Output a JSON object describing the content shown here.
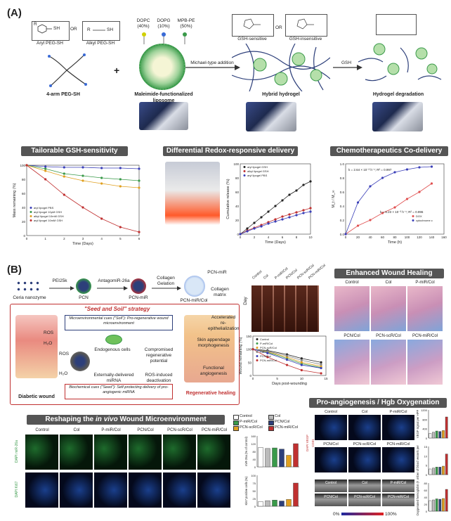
{
  "panelA": {
    "letter": "(A)",
    "aryl_label": "Aryl PEG-SH",
    "or1": "OR",
    "alkyl_label": "Alkyl PEG-SH",
    "sh1": "SH",
    "sh2": "SH",
    "r1": "R",
    "r2": "R",
    "peg_label": "4-arm PEG-SH",
    "plus": "+",
    "lip_comp": [
      "DOPC (40%)",
      "DOPG (10%)",
      "MPB-PE (50%)"
    ],
    "liposome_label": "Maleimide-functionalized liposome",
    "michael_label": "Michael-type addition",
    "gsh_sensitive": "GSH-sensitive",
    "or2": "OR",
    "gsh_insensitive": "GSH-insensitive",
    "hybrid_label": "Hybrid hydrogel",
    "gsh_arrow": "GSH",
    "degradation_label": "Hydrogel degradation",
    "banners": [
      "Tailorable GSH-sensitivity",
      "Differential Redox-responsive delivery",
      "Chemotherapeutics Co-delivery"
    ]
  },
  "chart_data": [
    {
      "type": "line",
      "xlabel": "Time (Days)",
      "ylabel": "Mass remaining (%)",
      "ylim": [
        0,
        100
      ],
      "x": [
        0,
        1,
        2,
        3,
        4,
        5,
        6
      ],
      "series": [
        {
          "name": "aryl lipogel PBS",
          "values": [
            100,
            98,
            97,
            97,
            96,
            96,
            95
          ],
          "color": "#3a3fb8"
        },
        {
          "name": "aryl lipogel 10μM GSH",
          "values": [
            100,
            95,
            88,
            85,
            82,
            80,
            78
          ],
          "color": "#3a9a4a"
        },
        {
          "name": "alkyl lipogel 10mM GSH",
          "values": [
            100,
            92,
            84,
            78,
            74,
            70,
            68
          ],
          "color": "#e0a020"
        },
        {
          "name": "aryl lipogel 10mM GSH",
          "values": [
            100,
            80,
            58,
            40,
            24,
            12,
            5
          ],
          "color": "#c03030"
        }
      ],
      "xticks": [
        "0",
        "1",
        "2",
        "3",
        "4",
        "5",
        "6"
      ],
      "yticks": [
        "0",
        "20",
        "40",
        "60",
        "80",
        "100"
      ]
    },
    {
      "type": "line",
      "xlabel": "Time (Days)",
      "ylabel": "Cumulative release (%)",
      "ylim": [
        0,
        100
      ],
      "x": [
        0,
        1,
        2,
        3,
        4,
        5,
        6,
        7,
        8,
        9,
        10
      ],
      "series": [
        {
          "name": "aryl lipogel GSH",
          "values": [
            0,
            8,
            16,
            24,
            32,
            40,
            48,
            56,
            62,
            70,
            75
          ],
          "color": "#222222"
        },
        {
          "name": "alkyl lipogel GSH",
          "values": [
            0,
            5,
            9,
            13,
            17,
            21,
            25,
            28,
            31,
            34,
            37
          ],
          "color": "#c03030"
        },
        {
          "name": "aryl lipogel PBS",
          "values": [
            0,
            4,
            8,
            11,
            15,
            18,
            21,
            24,
            27,
            30,
            32
          ],
          "color": "#3a3fb8"
        }
      ],
      "xticks": [
        "0",
        "2",
        "4",
        "6",
        "8",
        "10"
      ],
      "yticks": [
        "0",
        "20",
        "40",
        "60",
        "80",
        "100"
      ]
    },
    {
      "type": "scatter",
      "xlabel": "Time (h)",
      "ylabel": "M_t / M_∞",
      "ylim": [
        0,
        1.0
      ],
      "x": [
        0,
        20,
        40,
        60,
        80,
        100,
        120,
        140
      ],
      "series": [
        {
          "name": "DOX",
          "values": [
            0,
            0.12,
            0.2,
            0.3,
            0.38,
            0.5,
            0.6,
            0.72
          ],
          "color": "#e05050"
        },
        {
          "name": "cytochrome c",
          "values": [
            0,
            0.45,
            0.68,
            0.8,
            0.88,
            0.92,
            0.95,
            0.96
          ],
          "color": "#3a3fb8"
        }
      ],
      "annotations": [
        "k = 2.64 × 10⁻² h⁻¹; R² = 0.997",
        "k = 5.23 × 10⁻³ h⁻¹; R² = 0.996"
      ],
      "xticks": [
        "0",
        "20",
        "40",
        "60",
        "80",
        "100",
        "120",
        "140",
        "160"
      ],
      "yticks": [
        "0.0",
        "0.2",
        "0.4",
        "0.6",
        "0.8",
        "1.0"
      ]
    },
    {
      "type": "line",
      "xlabel": "Days post-wounding",
      "ylabel": "Wound remaining (%)",
      "ylim": [
        0,
        150
      ],
      "x": [
        0,
        3,
        7,
        10,
        14
      ],
      "series": [
        {
          "name": "Control",
          "values": [
            100,
            95,
            80,
            65,
            50
          ],
          "color": "#222222"
        },
        {
          "name": "P-miR/Col",
          "values": [
            100,
            88,
            65,
            45,
            30
          ],
          "color": "#3a9a4a"
        },
        {
          "name": "PCN-scR/Col",
          "values": [
            100,
            90,
            70,
            50,
            35
          ],
          "color": "#e0a020"
        },
        {
          "name": "Col",
          "values": [
            100,
            92,
            75,
            58,
            42
          ],
          "color": "#888888"
        },
        {
          "name": "PCN/Col",
          "values": [
            100,
            85,
            60,
            40,
            28
          ],
          "color": "#3a3fb8"
        },
        {
          "name": "PCN-miR/Col",
          "values": [
            100,
            70,
            40,
            20,
            8
          ],
          "color": "#c03030"
        }
      ],
      "xticks": [
        "0",
        "5",
        "10",
        "15"
      ],
      "yticks": [
        "0",
        "50",
        "100",
        "150"
      ]
    },
    {
      "type": "bar",
      "ylabel": "miR-26a (% of control)",
      "ylim": [
        0,
        160
      ],
      "categories": [
        "Control",
        "Col",
        "P-miR/Col",
        "PCN/Col",
        "PCN-scR/Col",
        "PCN-miR/Col"
      ],
      "values": [
        100,
        95,
        98,
        92,
        60,
        120
      ],
      "colors": [
        "#ffffff",
        "#bbbbbb",
        "#3a9a4a",
        "#2d3f7a",
        "#e0a020",
        "#c03030"
      ],
      "yticks": [
        "0",
        "40",
        "80",
        "120",
        "160"
      ]
    },
    {
      "type": "bar",
      "ylabel": "Ki67 positive cells (%)",
      "ylim": [
        0,
        100
      ],
      "categories": [
        "Control",
        "Col",
        "P-miR/Col",
        "PCN/Col",
        "PCN-scR/Col",
        "PCN-miR/Col"
      ],
      "values": [
        15,
        18,
        20,
        17,
        22,
        75
      ],
      "colors": [
        "#ffffff",
        "#bbbbbb",
        "#3a9a4a",
        "#2d3f7a",
        "#e0a020",
        "#c03030"
      ],
      "yticks": [
        "0",
        "25",
        "50",
        "75",
        "100"
      ]
    },
    {
      "type": "bar",
      "ylabel": "VEGF signal per HPF",
      "ylim": [
        0,
        1200
      ],
      "categories": [
        "Control",
        "Col",
        "P-miR/Col",
        "PCN/Col",
        "PCN-scR/Col",
        "PCN-miR/Col"
      ],
      "values": [
        200,
        250,
        300,
        280,
        320,
        900
      ],
      "colors": [
        "#ffffff",
        "#bbbbbb",
        "#3a9a4a",
        "#2d3f7a",
        "#e0a020",
        "#c03030"
      ],
      "yticks": [
        "0",
        "400",
        "800",
        "1200"
      ]
    },
    {
      "type": "bar",
      "ylabel": "Number of blood vessels per HPF",
      "ylim": [
        0,
        15
      ],
      "categories": [
        "Control",
        "Col",
        "P-miR/Col",
        "PCN/Col",
        "PCN-scR/Col",
        "PCN-miR/Col"
      ],
      "values": [
        3,
        3.5,
        4,
        4,
        4.5,
        11
      ],
      "colors": [
        "#ffffff",
        "#bbbbbb",
        "#3a9a4a",
        "#2d3f7a",
        "#e0a020",
        "#c03030"
      ],
      "yticks": [
        "0",
        "5",
        "10",
        "15"
      ]
    },
    {
      "type": "bar",
      "ylabel": "Oxygenated hemoglobin (%)",
      "ylim": [
        0,
        80
      ],
      "categories": [
        "Control",
        "Col",
        "P-miR/Col",
        "PCN/Col",
        "PCN-scR/Col",
        "PCN-miR/Col"
      ],
      "values": [
        30,
        32,
        35,
        34,
        36,
        62
      ],
      "colors": [
        "#ffffff",
        "#bbbbbb",
        "#3a9a4a",
        "#2d3f7a",
        "#e0a020",
        "#c03030"
      ],
      "yticks": [
        "0",
        "20",
        "40",
        "60",
        "80"
      ]
    }
  ],
  "panelB": {
    "letter": "(B)",
    "steps": [
      "Ceria nanozyme",
      "PCN",
      "PCN-miR",
      "PCN-miR/Col"
    ],
    "reagents": [
      "PEI25k",
      "AntagomiR-26a",
      "Collagen Gelation"
    ],
    "top_right_label": "PCN-miR",
    "collagen_label": "Collagen matrix",
    "seed_soil_title": "\"Seed and Soil\" strategy",
    "soil_text": "Microenvironmental cues (\"Soil\"): Pro-regenerative wound microenvironment",
    "seed_text": "Biochemical cues (\"Seed\"): Self-protecting delivery of pro-angiogenic miRNA",
    "endogenous": "Endogenous cells",
    "compromised": "Compromised regenerative potential",
    "externally": "Externally-delivered miRNA",
    "ros_induced": "ROS-induced deactivation",
    "ros": "ROS",
    "h2o": "H₂O",
    "diabetic_label": "Diabetic wound",
    "regen_label": "Regenerative healing",
    "accel": "Accelerated re-epithelialization",
    "skin_app": "Skin appendage morphogenesis",
    "functional": "Functional angiogenesis",
    "day_label": "Day",
    "photo_cols": [
      "Control",
      "Col",
      "P-miR/Col",
      "PCN/Col",
      "PCN-scR/Col",
      "PCN-miR/Col"
    ],
    "enhanced_title": "Enhanced Wound Healing",
    "enhanced_cols": [
      "Control",
      "Col",
      "P-miR/Col",
      "PCN/Col",
      "PCN-scR/Col",
      "PCN-miR/Col"
    ],
    "reshaping_title_pre": "Reshaping the ",
    "reshaping_title_em": "in vivo",
    "reshaping_title_post": " Wound Microenvironment",
    "reshape_cols": [
      "Control",
      "Col",
      "P-miR/Col",
      "PCN/Col",
      "PCN-scR/Col",
      "PCN-miR/Col"
    ],
    "row1_label": "DAPI miR-26a",
    "row2_label": "DAPI Ki67",
    "legend": [
      "Control",
      "Col",
      "P-miR/Col",
      "PCN/Col",
      "PCN-scR/Col",
      "PCN-miR/Col"
    ],
    "angio_title": "Pro-angiogenesis / Hgb Oxygenation",
    "angio_cols": [
      "Control",
      "Col",
      "P-miR/Col",
      "PCN/Col",
      "PCN-scR/Col",
      "PCN-miR/Col"
    ],
    "angio_row_label": "DAPI VEGF CD31",
    "scale_min": "0%",
    "scale_max": "100%"
  }
}
